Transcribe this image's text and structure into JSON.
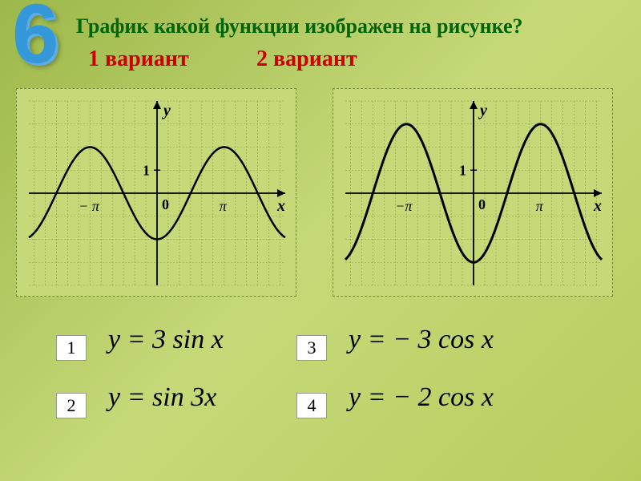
{
  "slide_number": "6",
  "question": "График какой функции изображен на рисунке?",
  "variant1": "1 вариант",
  "variant2": "2 вариант",
  "answers": {
    "a1": "1",
    "a2": "2",
    "a3": "3",
    "a4": "4"
  },
  "formulas": {
    "f1": "y = 3 sin x",
    "f2": "y = sin 3x",
    "f3": "y = − 3 cos x",
    "f4": "y = − 2 cos x"
  },
  "graph1": {
    "type": "line",
    "function": "-2*cos(x)",
    "xrange": [
      -6,
      6
    ],
    "yrange": [
      -4,
      4
    ],
    "grid_step_x": 0.5236,
    "grid_step_y": 1,
    "pi_positions": [
      -3.1416,
      3.1416
    ],
    "grid_color": "#8a9a4a",
    "axis_color": "#000000",
    "curve_color": "#000000",
    "curve_width": 2.5,
    "background": "#c5d978",
    "labels": {
      "y": "y",
      "x": "x",
      "one": "1",
      "zero": "0",
      "neg_pi": "− π",
      "pi": "π"
    }
  },
  "graph2": {
    "type": "line",
    "function": "-3*cos(x)",
    "xrange": [
      -6,
      6
    ],
    "yrange": [
      -4,
      4
    ],
    "grid_step_x": 0.5236,
    "grid_step_y": 1,
    "pi_positions": [
      -3.1416,
      3.1416
    ],
    "grid_color": "#8a9a4a",
    "axis_color": "#000000",
    "curve_color": "#000000",
    "curve_width": 3,
    "background": "#c5d978",
    "labels": {
      "y": "y",
      "x": "x",
      "one": "1",
      "zero": "0",
      "neg_pi": "−π",
      "pi": "π"
    }
  }
}
